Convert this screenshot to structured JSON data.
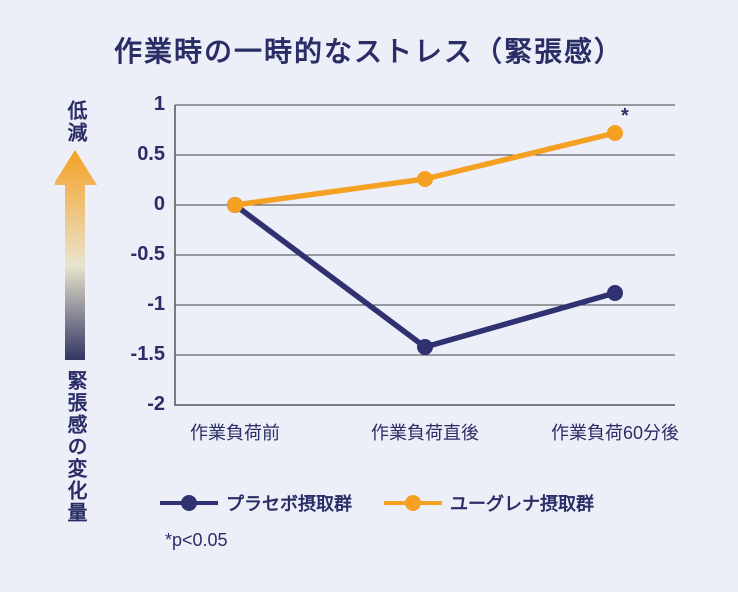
{
  "title": "作業時の一時的なストレス（緊張感）",
  "yaxis": {
    "top_label": "低減",
    "bottom_label": "緊張感の変化量",
    "gradient_top": "#f4a023",
    "gradient_mid": "#e9e4ce",
    "gradient_bottom": "#323563"
  },
  "chart": {
    "type": "line",
    "categories": [
      "作業負荷前",
      "作業負荷直後",
      "作業負荷60分後"
    ],
    "ylim": [
      -2,
      1
    ],
    "ytick_step": 0.5,
    "yticks": [
      1,
      0.5,
      0,
      -0.5,
      -1,
      -1.5,
      -2
    ],
    "ytick_labels": [
      "1",
      "0.5",
      "0",
      "-0.5",
      "-1",
      "-1.5",
      "-2"
    ],
    "grid_color": "#555555",
    "background_color": "#eceef8",
    "line_width": 5.5,
    "marker_radius": 8,
    "series": [
      {
        "name": "placebo",
        "label": "プラセボ摂取群",
        "color": "#2f3170",
        "values": [
          0,
          -1.42,
          -0.88
        ]
      },
      {
        "name": "euglena",
        "label": "ユーグレナ摂取群",
        "color": "#f4a023",
        "values": [
          0,
          0.26,
          0.72
        ]
      }
    ],
    "significance_marks": [
      {
        "series": "euglena",
        "category_index": 2,
        "symbol": "*"
      }
    ]
  },
  "footnote": "*p<0.05",
  "legend": {
    "items": [
      {
        "series": "placebo"
      },
      {
        "series": "euglena"
      }
    ]
  }
}
